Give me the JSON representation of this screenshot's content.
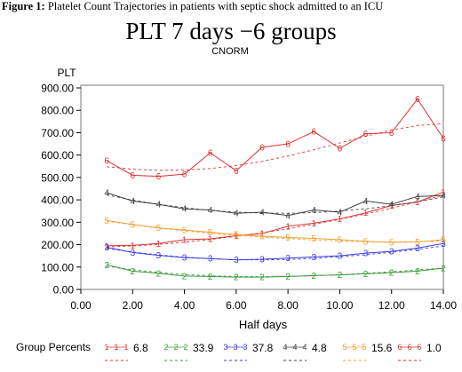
{
  "caption": {
    "label": "Figure 1:",
    "text": "Platelet Count Trajectories in patients with septic shock admitted to an ICU"
  },
  "chart_data": {
    "type": "line",
    "title": "PLT 7 days −6 groups",
    "subtitle": "CNORM",
    "xlabel": "Half days",
    "ylabel": "PLT",
    "xlim": [
      0,
      14
    ],
    "ylim": [
      0,
      900
    ],
    "x_ticks": [
      "0.00",
      "2.00",
      "4.00",
      "6.00",
      "8.00",
      "10.00",
      "12.00",
      "14.00"
    ],
    "y_ticks": [
      "0.00",
      "100.00",
      "200.00",
      "300.00",
      "400.00",
      "500.00",
      "600.00",
      "700.00",
      "800.00",
      "900.00"
    ],
    "legend": {
      "title": "Group Percents",
      "placement": "bottom"
    },
    "x": [
      1,
      2,
      3,
      4,
      5,
      6,
      7,
      8,
      9,
      10,
      11,
      12,
      13,
      14
    ],
    "series": [
      {
        "name": "1",
        "label": "6.8",
        "color": "#e03030",
        "values": [
          195,
          197,
          205,
          222,
          226,
          240,
          250,
          282,
          296,
          315,
          342,
          375,
          390,
          435
        ],
        "fitted": [
          190,
          194,
          201,
          211,
          223,
          237,
          253,
          271,
          291,
          313,
          337,
          363,
          391,
          421
        ]
      },
      {
        "name": "2",
        "label": "33.9",
        "color": "#3a9a3a",
        "values": [
          110,
          82,
          72,
          60,
          58,
          55,
          55,
          58,
          62,
          65,
          70,
          75,
          82,
          95
        ],
        "fitted": [
          103,
          88,
          76,
          67,
          61,
          58,
          57,
          58,
          61,
          66,
          72,
          79,
          87,
          96
        ]
      },
      {
        "name": "3",
        "label": "37.8",
        "color": "#3a3ae0",
        "values": [
          188,
          165,
          152,
          142,
          138,
          132,
          135,
          140,
          145,
          150,
          162,
          170,
          185,
          205
        ],
        "fitted": [
          183,
          167,
          154,
          144,
          137,
          133,
          132,
          134,
          139,
          146,
          155,
          166,
          179,
          194
        ]
      },
      {
        "name": "4",
        "label": "4.8",
        "color": "#404040",
        "values": [
          432,
          395,
          380,
          360,
          355,
          340,
          345,
          330,
          355,
          345,
          395,
          380,
          415,
          420
        ],
        "fitted": [
          422,
          399,
          380,
          365,
          353,
          345,
          341,
          340,
          343,
          350,
          360,
          374,
          392,
          413
        ]
      },
      {
        "name": "5",
        "label": "15.6",
        "color": "#f0a030",
        "values": [
          308,
          290,
          275,
          265,
          255,
          245,
          238,
          232,
          228,
          222,
          215,
          210,
          212,
          222
        ],
        "fitted": [
          305,
          289,
          274,
          262,
          251,
          242,
          234,
          227,
          221,
          216,
          213,
          212,
          213,
          217
        ]
      },
      {
        "name": "6",
        "label": "1.0",
        "color": "#e03030",
        "values": [
          575,
          510,
          505,
          515,
          610,
          530,
          635,
          650,
          705,
          630,
          695,
          700,
          850,
          675
        ],
        "fitted": [
          548,
          537,
          532,
          533,
          540,
          553,
          572,
          596,
          624,
          654,
          684,
          712,
          732,
          740
        ]
      }
    ]
  }
}
